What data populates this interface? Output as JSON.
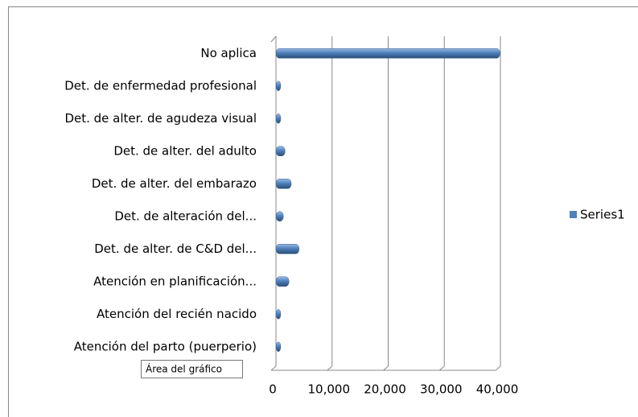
{
  "chart_data": {
    "type": "bar",
    "orientation": "horizontal",
    "categories": [
      "No aplica",
      "Det. de enfermedad profesional",
      "Det. de alter. de agudeza visual",
      "Det. de alter. del adulto",
      "Det. de alter. del embarazo",
      "Det. de alteración del...",
      "Det. de alter. de C&D del...",
      "Atención en planificación...",
      "Atención del recién nacido",
      "Atención del parto (puerperio)"
    ],
    "series": [
      {
        "name": "Series1",
        "color": "#4f81bd",
        "values": [
          39500,
          100,
          100,
          1200,
          2300,
          900,
          3700,
          1900,
          200,
          300
        ]
      }
    ],
    "xlim": [
      0,
      40000
    ],
    "xticks": [
      0,
      {
        "value": 10000,
        "label": "10,000"
      },
      {
        "value": 20000,
        "label": "20,000"
      },
      {
        "value": 30000,
        "label": "30,000"
      },
      {
        "value": 40000,
        "label": "40,000"
      }
    ],
    "grid": true,
    "legend": "right",
    "tooltip": "Área del gráfico"
  }
}
